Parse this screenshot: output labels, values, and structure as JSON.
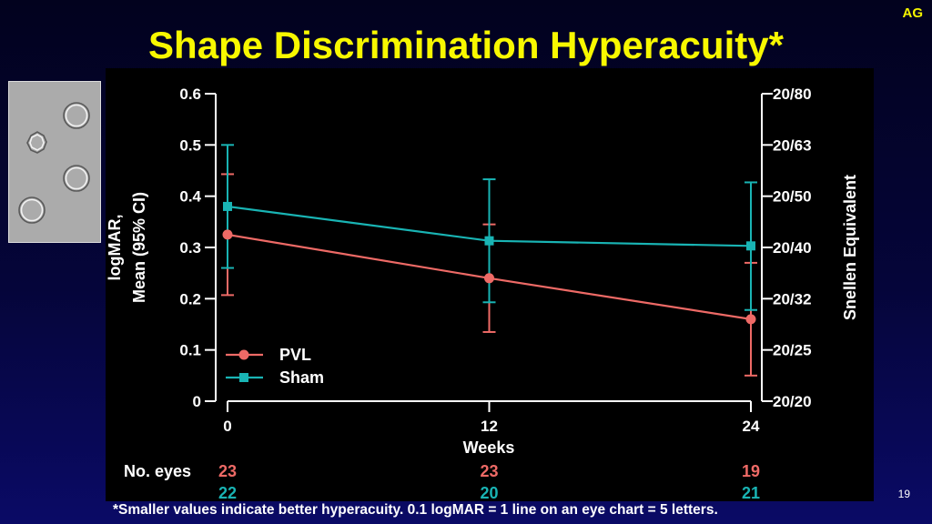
{
  "badge": "AG",
  "title": "Shape Discrimination Hyperacuity*",
  "footnote": "*Smaller values indicate better hyperacuity. 0.1 logMAR = 1 line on an eye chart = 5 letters.",
  "page_number": "19",
  "colors": {
    "pvl": "#ee6a66",
    "sham": "#19b4b4",
    "title": "#f8f800"
  },
  "icons": {
    "stimulus": "shape-discrimination-stimulus-icon"
  },
  "eyes_label": "No. eyes",
  "chart_data": {
    "type": "line",
    "title": "Shape Discrimination Hyperacuity*",
    "xlabel": "Weeks",
    "ylabel_lines": [
      "logMAR,",
      "Mean (95% CI)"
    ],
    "y2label": "Snellen Equivalent",
    "x": [
      0,
      12,
      24
    ],
    "x_ticks": [
      "0",
      "12",
      "24"
    ],
    "xlim": [
      0,
      24
    ],
    "ylim": [
      0,
      0.6
    ],
    "y_ticks": [
      "0",
      "0.1",
      "0.2",
      "0.3",
      "0.4",
      "0.5",
      "0.6"
    ],
    "y2_ticks": [
      "20/20",
      "20/25",
      "20/32",
      "20/40",
      "20/50",
      "20/63",
      "20/80"
    ],
    "grid": false,
    "legend_position": "bottom-left",
    "series": [
      {
        "name": "PVL",
        "marker": "circle",
        "values": [
          0.325,
          0.24,
          0.16
        ],
        "ci_low": [
          0.207,
          0.135,
          0.05
        ],
        "ci_high": [
          0.443,
          0.345,
          0.27
        ],
        "eyes": [
          "23",
          "23",
          "19"
        ]
      },
      {
        "name": "Sham",
        "marker": "square",
        "values": [
          0.38,
          0.313,
          0.303
        ],
        "ci_low": [
          0.26,
          0.193,
          0.178
        ],
        "ci_high": [
          0.5,
          0.433,
          0.427
        ],
        "eyes": [
          "22",
          "20",
          "21"
        ]
      }
    ]
  }
}
